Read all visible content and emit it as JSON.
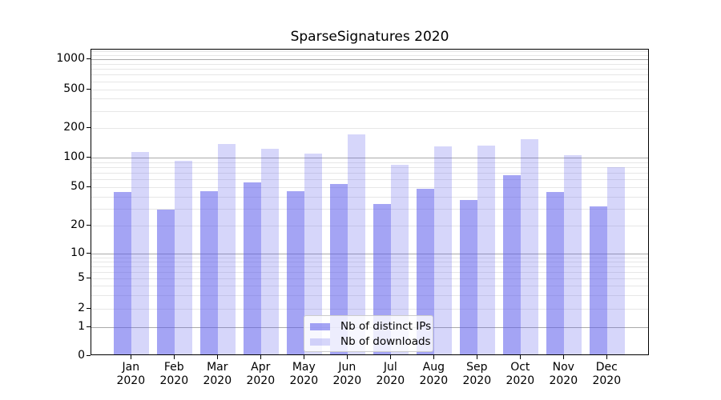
{
  "title": "SparseSignatures 2020",
  "legend": {
    "items": [
      {
        "label": "Nb of distinct IPs"
      },
      {
        "label": "Nb of downloads"
      }
    ]
  },
  "colors": {
    "bar_base": "#5a5aeb",
    "ips_alpha": 0.55,
    "downloads_alpha": 0.25,
    "grid_major": "#aaaaaa",
    "grid_minor": "#e7e7e7",
    "axis": "#000000",
    "legend_border": "#cccccc"
  },
  "chart_data": {
    "type": "bar",
    "title": "SparseSignatures 2020",
    "categories": [
      "Jan 2020",
      "Feb 2020",
      "Mar 2020",
      "Apr 2020",
      "May 2020",
      "Jun 2020",
      "Jul 2020",
      "Aug 2020",
      "Sep 2020",
      "Oct 2020",
      "Nov 2020",
      "Dec 2020"
    ],
    "series": [
      {
        "name": "Nb of distinct IPs",
        "values": [
          44,
          29,
          45,
          55,
          45,
          53,
          33,
          47,
          36,
          65,
          44,
          31
        ]
      },
      {
        "name": "Nb of downloads",
        "values": [
          112,
          92,
          136,
          121,
          107,
          169,
          83,
          128,
          130,
          150,
          104,
          79
        ]
      }
    ],
    "xlabel": "",
    "ylabel": "",
    "yscale": "symlog",
    "yticks": [
      0,
      1,
      2,
      5,
      10,
      20,
      50,
      100,
      200,
      500,
      1000
    ],
    "ylim": [
      0,
      1250
    ],
    "grid": "on",
    "legend_position": "lower center"
  }
}
